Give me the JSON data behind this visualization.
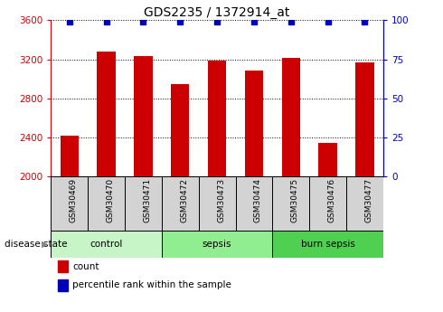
{
  "title": "GDS2235 / 1372914_at",
  "samples": [
    "GSM30469",
    "GSM30470",
    "GSM30471",
    "GSM30472",
    "GSM30473",
    "GSM30474",
    "GSM30475",
    "GSM30476",
    "GSM30477"
  ],
  "counts": [
    2420,
    3280,
    3230,
    2950,
    3190,
    3080,
    3210,
    2340,
    3170
  ],
  "groups": [
    {
      "label": "control",
      "indices": [
        0,
        1,
        2
      ],
      "color": "#c8f5c8"
    },
    {
      "label": "sepsis",
      "indices": [
        3,
        4,
        5
      ],
      "color": "#90ee90"
    },
    {
      "label": "burn sepsis",
      "indices": [
        6,
        7,
        8
      ],
      "color": "#50d050"
    }
  ],
  "ylim_left": [
    2000,
    3600
  ],
  "ylim_right": [
    0,
    100
  ],
  "yticks_left": [
    2000,
    2400,
    2800,
    3200,
    3600
  ],
  "yticks_right": [
    0,
    25,
    50,
    75,
    100
  ],
  "bar_color": "#cc0000",
  "dot_color": "#0000bb",
  "left_tick_color": "#cc0000",
  "right_tick_color": "#0000bb",
  "grid_color": "black",
  "title_fontsize": 10,
  "legend_count_label": "count",
  "legend_percentile_label": "percentile rank within the sample",
  "disease_state_label": "disease state",
  "sample_box_color": "#d3d3d3",
  "bar_width": 0.5,
  "percentile_value": 99
}
